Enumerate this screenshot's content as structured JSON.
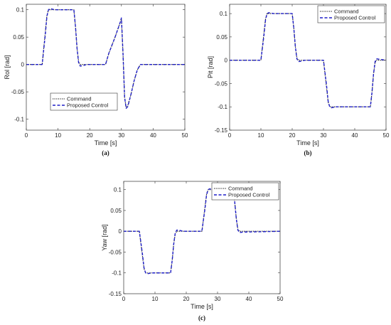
{
  "chart_data": [
    {
      "type": "line",
      "panel": "(a)",
      "xlabel": "Time [s]",
      "ylabel": "Rol [rad]",
      "xlim": [
        0,
        50
      ],
      "ylim": [
        -0.12,
        0.11
      ],
      "xticks": [
        0,
        10,
        20,
        30,
        40,
        50
      ],
      "yticks": [
        -0.1,
        -0.05,
        0,
        0.05,
        0.1
      ],
      "ytick_labels": [
        "-0.1",
        "-0.05",
        "0",
        "0.05",
        "0.1"
      ],
      "legend": "lower-left",
      "series": [
        {
          "name": "Command",
          "color": "#000000",
          "style": "dotted",
          "x": [
            0,
            5,
            6,
            6.5,
            7,
            8,
            15,
            15.5,
            16,
            16.5,
            17,
            25,
            26,
            28,
            29.5,
            30,
            30.5,
            31,
            31.5,
            32,
            33,
            34,
            35,
            36,
            50
          ],
          "y": [
            0,
            0,
            0.06,
            0.09,
            0.1,
            0.1,
            0.1,
            0.07,
            0.03,
            0.005,
            0,
            0,
            0.02,
            0.05,
            0.075,
            0.083,
            0.02,
            -0.06,
            -0.08,
            -0.075,
            -0.055,
            -0.03,
            -0.01,
            0,
            0
          ]
        },
        {
          "name": "Proposed Control",
          "color": "#1f1fc8",
          "style": "dashed",
          "x": [
            0,
            5,
            6,
            6.5,
            7,
            7.5,
            9,
            15,
            15.5,
            16,
            16.5,
            17,
            18,
            19,
            25,
            26,
            28,
            29.5,
            30,
            30.5,
            31,
            31.5,
            32,
            33,
            34,
            35,
            36,
            50
          ],
          "y": [
            0,
            0,
            0.055,
            0.088,
            0.1,
            0.102,
            0.1,
            0.1,
            0.07,
            0.03,
            0.003,
            -0.003,
            -0.002,
            0,
            0,
            0.02,
            0.05,
            0.075,
            0.085,
            0.02,
            -0.06,
            -0.08,
            -0.077,
            -0.055,
            -0.03,
            -0.01,
            0,
            0
          ]
        }
      ]
    },
    {
      "type": "line",
      "panel": "(b)",
      "xlabel": "Time [s]",
      "ylabel": "Pit [rad]",
      "xlim": [
        0,
        50
      ],
      "ylim": [
        -0.15,
        0.12
      ],
      "xticks": [
        0,
        10,
        20,
        30,
        40,
        50
      ],
      "yticks": [
        -0.15,
        -0.1,
        -0.05,
        0,
        0.05,
        0.1
      ],
      "ytick_labels": [
        "-0.15",
        "-0.1",
        "-0.05",
        "0",
        "0.05",
        "0.1"
      ],
      "legend": "top-right",
      "series": [
        {
          "name": "Command",
          "color": "#000000",
          "style": "dotted",
          "x": [
            0,
            10,
            11,
            11.5,
            12,
            13,
            20,
            20.5,
            21,
            21.5,
            22,
            30,
            31,
            31.5,
            32,
            33,
            45,
            45.5,
            46,
            46.5,
            47,
            50
          ],
          "y": [
            0,
            0,
            0.06,
            0.09,
            0.1,
            0.1,
            0.1,
            0.07,
            0.03,
            0.005,
            0,
            0,
            -0.06,
            -0.09,
            -0.1,
            -0.1,
            -0.1,
            -0.07,
            -0.03,
            -0.005,
            0,
            0
          ]
        },
        {
          "name": "Proposed Control",
          "color": "#1f1fc8",
          "style": "dashed",
          "x": [
            0,
            10,
            11,
            11.5,
            12,
            12.5,
            14,
            20,
            20.5,
            21,
            21.5,
            22,
            23,
            24,
            30,
            31,
            31.5,
            32,
            32.5,
            34,
            45,
            45.5,
            46,
            46.5,
            47,
            48,
            50
          ],
          "y": [
            0,
            0,
            0.055,
            0.088,
            0.1,
            0.102,
            0.1,
            0.1,
            0.07,
            0.03,
            0.003,
            -0.003,
            -0.002,
            0,
            0,
            -0.055,
            -0.088,
            -0.1,
            -0.102,
            -0.1,
            -0.1,
            -0.07,
            -0.03,
            -0.003,
            0.003,
            0.002,
            0
          ]
        }
      ]
    },
    {
      "type": "line",
      "panel": "(c)",
      "xlabel": "Time [s]",
      "ylabel": "Yaw [rad]",
      "xlim": [
        0,
        50
      ],
      "ylim": [
        -0.15,
        0.12
      ],
      "xticks": [
        0,
        10,
        20,
        30,
        40,
        50
      ],
      "yticks": [
        -0.15,
        -0.1,
        -0.05,
        0,
        0.05,
        0.1
      ],
      "ytick_labels": [
        "-0.15",
        "-0.1",
        "-0.05",
        "0",
        "0.05",
        "0.1"
      ],
      "legend": "top-right",
      "series": [
        {
          "name": "Command",
          "color": "#000000",
          "style": "dotted",
          "x": [
            0,
            5,
            6,
            6.5,
            7,
            8,
            15,
            15.5,
            16,
            16.5,
            17,
            25,
            26,
            26.5,
            27,
            28,
            35,
            35.5,
            36,
            36.5,
            37,
            50
          ],
          "y": [
            0,
            0,
            -0.06,
            -0.09,
            -0.1,
            -0.1,
            -0.1,
            -0.07,
            -0.03,
            -0.005,
            0,
            0,
            0.06,
            0.09,
            0.1,
            0.1,
            0.1,
            0.07,
            0.03,
            0.005,
            0,
            0
          ]
        },
        {
          "name": "Proposed Control",
          "color": "#1f1fc8",
          "style": "dashed",
          "x": [
            0,
            5,
            6,
            6.5,
            7,
            7.5,
            9,
            15,
            15.5,
            16,
            16.5,
            17,
            18,
            19,
            25,
            26,
            26.5,
            27,
            27.5,
            29,
            35,
            35.5,
            36,
            36.5,
            37,
            38,
            50
          ],
          "y": [
            0,
            0,
            -0.055,
            -0.088,
            -0.1,
            -0.102,
            -0.1,
            -0.1,
            -0.07,
            -0.03,
            -0.003,
            0.003,
            0.002,
            0,
            0,
            0.055,
            0.088,
            0.1,
            0.102,
            0.1,
            0.1,
            0.07,
            0.03,
            0.003,
            -0.003,
            -0.002,
            0
          ]
        }
      ]
    }
  ]
}
